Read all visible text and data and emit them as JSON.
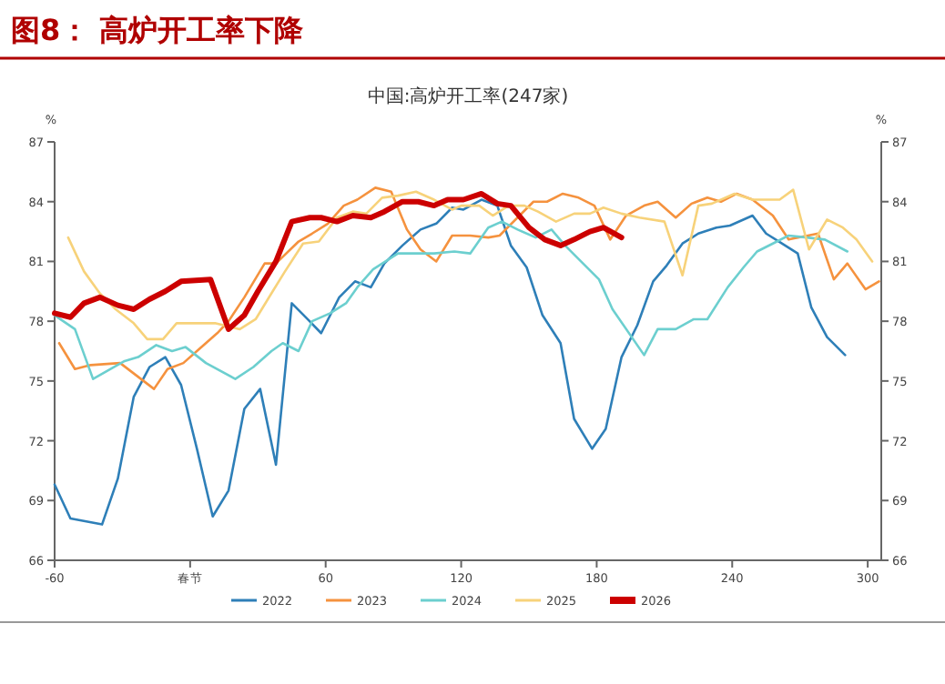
{
  "chart_data": {
    "type": "line",
    "title": "图8：  高炉开工率下降",
    "subtitle": "中国:高炉开工率(247家)",
    "ylabel": "%",
    "y2label": "%",
    "xlim": [
      -60,
      306
    ],
    "xticks": [
      -60,
      {
        "value": 0,
        "label": "春节"
      },
      60,
      120,
      180,
      240,
      300
    ],
    "ylim": [
      66,
      87
    ],
    "yticks": [
      66,
      69,
      72,
      75,
      78,
      81,
      84,
      87
    ],
    "y2lim": [
      66,
      87
    ],
    "y2ticks": [
      66,
      69,
      72,
      75,
      78,
      81,
      84,
      87
    ],
    "grid": false,
    "legend": "bottom",
    "marker": "none",
    "line_style": "solid",
    "series": [
      {
        "name": "2022",
        "color": "#2e7fb8",
        "x": [
          -60,
          -53,
          -39,
          -32,
          -25,
          -18,
          -11,
          -4,
          3,
          10,
          17,
          24,
          31,
          38,
          45,
          52,
          58,
          66,
          73,
          80,
          86,
          94,
          102,
          109,
          116,
          121,
          129,
          136,
          142,
          149,
          156,
          164,
          170,
          178,
          184,
          191,
          198,
          205,
          211,
          218,
          225,
          233,
          239,
          249,
          255,
          262,
          269,
          275,
          282,
          290
        ],
        "values": [
          69.8,
          68.1,
          67.8,
          70.1,
          74.2,
          75.7,
          76.2,
          74.8,
          71.6,
          68.2,
          69.5,
          73.6,
          74.6,
          70.8,
          78.9,
          78.1,
          77.4,
          79.2,
          80.0,
          79.7,
          80.9,
          81.8,
          82.6,
          82.9,
          83.7,
          83.6,
          84.1,
          83.8,
          81.8,
          80.7,
          78.3,
          76.9,
          73.1,
          71.6,
          72.6,
          76.2,
          77.8,
          80.0,
          80.8,
          81.9,
          82.4,
          82.7,
          82.8,
          83.3,
          82.4,
          81.9,
          81.4,
          78.7,
          77.2,
          76.3
        ]
      },
      {
        "name": "2023",
        "color": "#f5923e",
        "x": [
          -58,
          -51,
          -44,
          -31,
          -16,
          -10,
          -3,
          4,
          12,
          17,
          24,
          33,
          38,
          48,
          54,
          61,
          68,
          74,
          82,
          89,
          96,
          102,
          109,
          116,
          124,
          132,
          137,
          152,
          158,
          165,
          172,
          179,
          186,
          193,
          201,
          207,
          215,
          222,
          229,
          235,
          242,
          249,
          258,
          265,
          278,
          285,
          291,
          299,
          305
        ],
        "values": [
          76.9,
          75.6,
          75.8,
          75.9,
          74.6,
          75.6,
          75.9,
          76.6,
          77.4,
          78.0,
          79.2,
          80.9,
          80.9,
          82.0,
          82.4,
          82.9,
          83.8,
          84.1,
          84.7,
          84.5,
          82.6,
          81.6,
          81.0,
          82.3,
          82.3,
          82.2,
          82.3,
          84.0,
          84.0,
          84.4,
          84.2,
          83.8,
          82.1,
          83.3,
          83.8,
          84.0,
          83.2,
          83.9,
          84.2,
          84.0,
          84.4,
          84.1,
          83.3,
          82.1,
          82.4,
          80.1,
          80.9,
          79.6,
          80.0
        ]
      },
      {
        "name": "2024",
        "color": "#6ccfcf",
        "x": [
          -60,
          -51,
          -43,
          -29,
          -23,
          -15,
          -8,
          -2,
          7,
          20,
          28,
          36,
          41,
          48,
          54,
          62,
          69,
          74,
          81,
          92,
          108,
          117,
          124,
          132,
          138,
          145,
          153,
          160,
          166,
          181,
          187,
          201,
          207,
          215,
          223,
          229,
          238,
          245,
          251,
          258,
          265,
          273,
          281,
          291
        ],
        "values": [
          78.3,
          77.6,
          75.1,
          76.0,
          76.2,
          76.8,
          76.5,
          76.7,
          75.9,
          75.1,
          75.7,
          76.5,
          76.9,
          76.5,
          78.0,
          78.4,
          78.9,
          79.7,
          80.6,
          81.4,
          81.4,
          81.5,
          81.4,
          82.7,
          83.0,
          82.6,
          82.2,
          82.6,
          81.8,
          80.1,
          78.6,
          76.3,
          77.6,
          77.6,
          78.1,
          78.1,
          79.7,
          80.7,
          81.5,
          81.9,
          82.3,
          82.2,
          82.1,
          81.5
        ]
      },
      {
        "name": "2025",
        "color": "#f7d27a",
        "x": [
          -54,
          -47,
          -40,
          -33,
          -25,
          -19,
          -12,
          -6,
          11,
          22,
          29,
          36,
          42,
          50,
          57,
          65,
          72,
          78,
          85,
          92,
          100,
          108,
          116,
          120,
          128,
          134,
          141,
          148,
          154,
          162,
          170,
          177,
          183,
          191,
          199,
          210,
          218,
          225,
          231,
          241,
          249,
          261,
          267,
          274,
          282,
          289,
          295,
          302
        ],
        "values": [
          82.2,
          80.5,
          79.4,
          78.6,
          77.9,
          77.1,
          77.1,
          77.9,
          77.9,
          77.6,
          78.1,
          79.4,
          80.5,
          81.9,
          82.0,
          83.2,
          83.5,
          83.4,
          84.2,
          84.3,
          84.5,
          84.1,
          83.6,
          83.8,
          83.8,
          83.3,
          83.8,
          83.8,
          83.5,
          83.0,
          83.4,
          83.4,
          83.7,
          83.4,
          83.2,
          83.0,
          80.3,
          83.8,
          83.9,
          84.4,
          84.1,
          84.1,
          84.6,
          81.6,
          83.1,
          82.7,
          82.1,
          81.0
        ]
      },
      {
        "name": "2026",
        "color": "#cc0000",
        "x": [
          -60,
          -53,
          -47,
          -40,
          -32,
          -25,
          -18,
          -11,
          -4,
          9,
          17,
          24,
          30,
          38,
          45,
          53,
          58,
          65,
          72,
          80,
          86,
          94,
          101,
          108,
          114,
          121,
          129,
          136,
          142,
          150,
          157,
          164,
          170,
          177,
          183,
          191
        ],
        "values": [
          78.4,
          78.2,
          78.9,
          79.2,
          78.8,
          78.6,
          79.1,
          79.5,
          80.0,
          80.1,
          77.6,
          78.3,
          79.5,
          81.0,
          83.0,
          83.2,
          83.2,
          83.0,
          83.3,
          83.2,
          83.5,
          84.0,
          84.0,
          83.8,
          84.1,
          84.1,
          84.4,
          83.9,
          83.8,
          82.7,
          82.1,
          81.8,
          82.1,
          82.5,
          82.7,
          82.2
        ]
      }
    ]
  }
}
